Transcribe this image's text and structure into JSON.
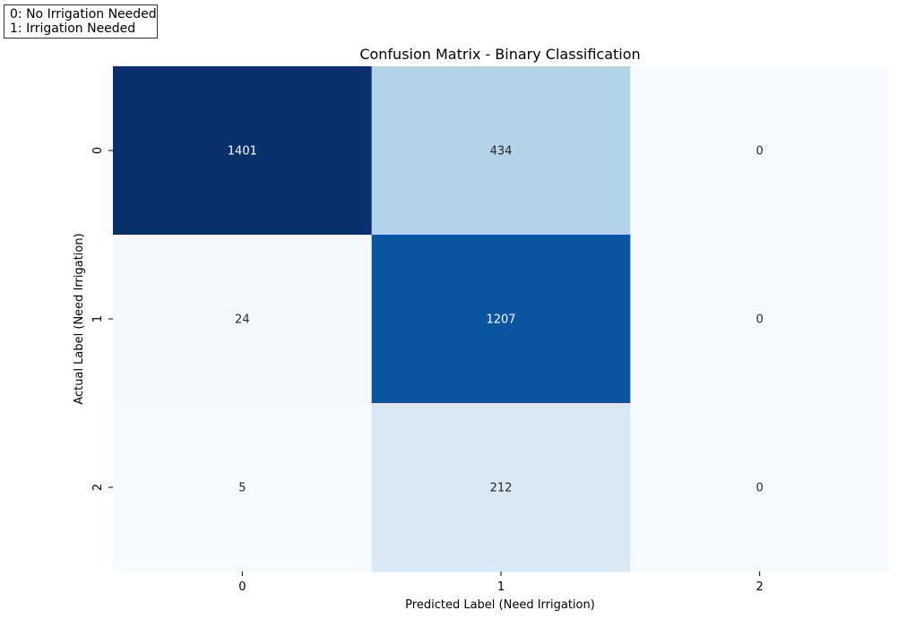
{
  "chart_data": {
    "type": "heatmap",
    "title": "Confusion Matrix - Binary Classification",
    "xlabel": "Predicted Label (Need Irrigation)",
    "ylabel": "Actual Label (Need Irrigation)",
    "x_tick_labels": [
      "0",
      "1",
      "2"
    ],
    "y_tick_labels": [
      "0",
      "1",
      "2"
    ],
    "matrix": [
      [
        1401,
        434,
        0
      ],
      [
        24,
        1207,
        0
      ],
      [
        5,
        212,
        0
      ]
    ],
    "colormap": "Blues",
    "colorbar": false,
    "annotation": {
      "lines": [
        "0: No Irrigation Needed",
        "1: Irrigation Needed"
      ],
      "placement": "top-left"
    }
  }
}
